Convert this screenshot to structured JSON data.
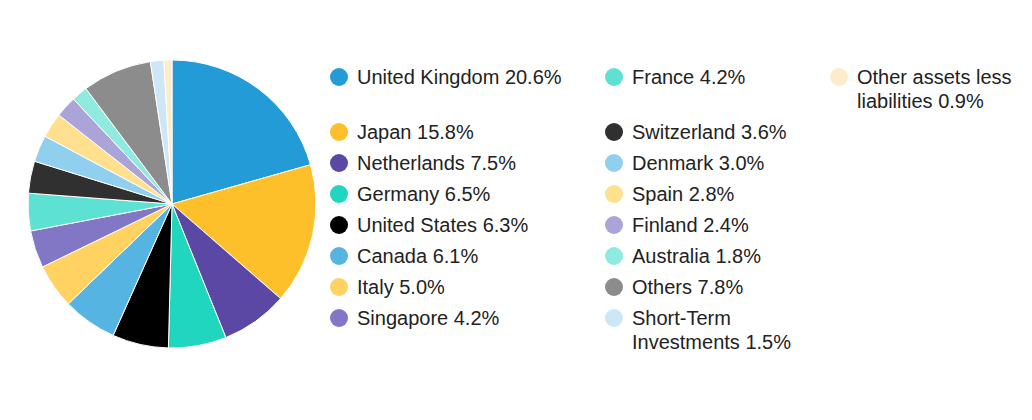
{
  "chart_data": {
    "type": "pie",
    "categories": [
      "United Kingdom",
      "Japan",
      "Netherlands",
      "Germany",
      "United States",
      "Canada",
      "Italy",
      "Singapore",
      "France",
      "Switzerland",
      "Denmark",
      "Spain",
      "Finland",
      "Australia",
      "Others",
      "Short-Term Investments",
      "Other assets less liabilities"
    ],
    "values": [
      20.6,
      15.8,
      7.5,
      6.5,
      6.3,
      6.1,
      5.0,
      4.2,
      4.2,
      3.6,
      3.0,
      2.8,
      2.4,
      1.8,
      7.8,
      1.5,
      0.9
    ],
    "value_labels": [
      "20.6%",
      "15.8%",
      "7.5%",
      "6.5%",
      "6.3%",
      "6.1%",
      "5.0%",
      "4.2%",
      "4.2%",
      "3.6%",
      "3.0%",
      "2.8%",
      "2.4%",
      "1.8%",
      "7.8%",
      "1.5%",
      "0.9%"
    ],
    "colors": [
      "#229bd6",
      "#fdbf2a",
      "#5a48a4",
      "#20d6bf",
      "#000000",
      "#56b4e2",
      "#ffd261",
      "#8177c5",
      "#5ce1d2",
      "#303030",
      "#90cfee",
      "#ffe08e",
      "#aba4d9",
      "#8feadf",
      "#8c8c8c",
      "#cde7f7",
      "#fdeccb"
    ],
    "legend": "right"
  }
}
